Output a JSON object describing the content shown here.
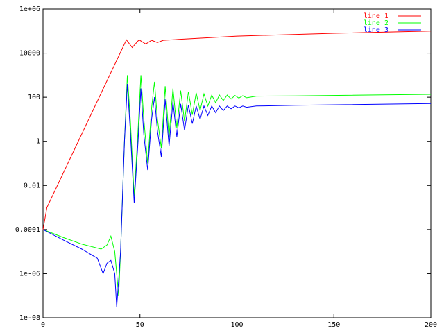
{
  "chart_data": {
    "type": "line",
    "title": "",
    "xlabel": "",
    "ylabel": "",
    "xlim": [
      0,
      200
    ],
    "ylim": [
      1e-08,
      1000000.0
    ],
    "yscale": "log",
    "grid": false,
    "legend_placement": "top-right",
    "xticks": [
      {
        "v": 0,
        "label": "0"
      },
      {
        "v": 50,
        "label": "50"
      },
      {
        "v": 100,
        "label": "100"
      },
      {
        "v": 150,
        "label": "150"
      },
      {
        "v": 200,
        "label": "200"
      }
    ],
    "yticks": [
      {
        "v": 1e-08,
        "label": "1e-08"
      },
      {
        "v": 1e-06,
        "label": "1e-06"
      },
      {
        "v": 0.0001,
        "label": "0.0001"
      },
      {
        "v": 0.01,
        "label": "0.01"
      },
      {
        "v": 1,
        "label": "1"
      },
      {
        "v": 100,
        "label": "100"
      },
      {
        "v": 10000,
        "label": "10000"
      },
      {
        "v": 1000000.0,
        "label": "1e+06"
      }
    ],
    "series": [
      {
        "name": "line 1",
        "color": "#ff0000",
        "points": [
          [
            0,
            0.0001
          ],
          [
            2,
            0.001
          ],
          [
            43,
            40000
          ],
          [
            46,
            18000
          ],
          [
            49.5,
            40000
          ],
          [
            53,
            26000
          ],
          [
            56,
            38000
          ],
          [
            59,
            30000
          ],
          [
            62,
            38000
          ],
          [
            70,
            42000
          ],
          [
            100,
            59000
          ],
          [
            150,
            79000
          ],
          [
            200,
            100000
          ]
        ]
      },
      {
        "name": "line 2",
        "color": "#00ff00",
        "points": [
          [
            0,
            0.0001
          ],
          [
            10,
            4.5e-05
          ],
          [
            20,
            2.2e-05
          ],
          [
            30,
            1.3e-05
          ],
          [
            33,
            2e-05
          ],
          [
            35,
            5e-05
          ],
          [
            37,
            1e-05
          ],
          [
            39,
            1e-07
          ],
          [
            40,
            1e-05
          ],
          [
            42,
            1
          ],
          [
            43.5,
            1000
          ],
          [
            45,
            10
          ],
          [
            47,
            0.0032
          ],
          [
            49,
            3.2
          ],
          [
            50.5,
            1000
          ],
          [
            52,
            10
          ],
          [
            54,
            0.1
          ],
          [
            56,
            32
          ],
          [
            57.5,
            500
          ],
          [
            59,
            10
          ],
          [
            61,
            0.5
          ],
          [
            63,
            316
          ],
          [
            65,
            1.6
          ],
          [
            67,
            250
          ],
          [
            69,
            4
          ],
          [
            71,
            200
          ],
          [
            73,
            8
          ],
          [
            75,
            178
          ],
          [
            77,
            16
          ],
          [
            79,
            158
          ],
          [
            81,
            25
          ],
          [
            83,
            141
          ],
          [
            85,
            40
          ],
          [
            87,
            126
          ],
          [
            89,
            56
          ],
          [
            91,
            126
          ],
          [
            93,
            71
          ],
          [
            95,
            126
          ],
          [
            97,
            83
          ],
          [
            99,
            120
          ],
          [
            101,
            91
          ],
          [
            103,
            117
          ],
          [
            105,
            95
          ],
          [
            110,
            112
          ],
          [
            130,
            115
          ],
          [
            200,
            135
          ]
        ]
      },
      {
        "name": "line 3",
        "color": "#0000ff",
        "points": [
          [
            0,
            0.0001
          ],
          [
            10,
            3.5e-05
          ],
          [
            20,
            1.3e-05
          ],
          [
            28,
            5e-06
          ],
          [
            31,
            1e-06
          ],
          [
            33,
            3e-06
          ],
          [
            35,
            4e-06
          ],
          [
            37,
            1e-06
          ],
          [
            38,
            3e-08
          ],
          [
            39,
            5e-07
          ],
          [
            40,
            1e-05
          ],
          [
            42,
            1
          ],
          [
            43.5,
            400
          ],
          [
            45,
            3
          ],
          [
            47,
            0.0016
          ],
          [
            49,
            1
          ],
          [
            50.5,
            250
          ],
          [
            52,
            2
          ],
          [
            54,
            0.05
          ],
          [
            56,
            10
          ],
          [
            57.5,
            100
          ],
          [
            59,
            3
          ],
          [
            61,
            0.2
          ],
          [
            63,
            80
          ],
          [
            65,
            0.6
          ],
          [
            67,
            63
          ],
          [
            69,
            1.6
          ],
          [
            71,
            50
          ],
          [
            73,
            3.2
          ],
          [
            75,
            45
          ],
          [
            77,
            6.3
          ],
          [
            79,
            40
          ],
          [
            81,
            10
          ],
          [
            83,
            40
          ],
          [
            85,
            15
          ],
          [
            87,
            40
          ],
          [
            89,
            20
          ],
          [
            91,
            40
          ],
          [
            93,
            25
          ],
          [
            95,
            40
          ],
          [
            97,
            30
          ],
          [
            99,
            40
          ],
          [
            101,
            33
          ],
          [
            103,
            40
          ],
          [
            105,
            35
          ],
          [
            110,
            40
          ],
          [
            130,
            43
          ],
          [
            200,
            52
          ]
        ]
      }
    ]
  }
}
